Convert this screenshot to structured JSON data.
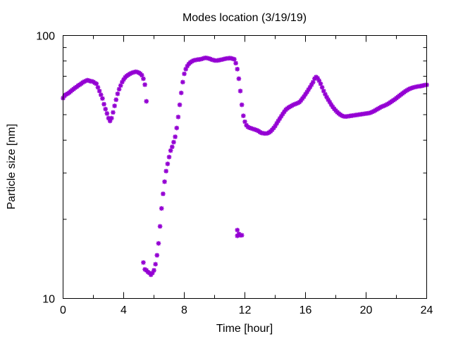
{
  "chart_data": {
    "type": "scatter",
    "title": "Modes location (3/19/19)",
    "xlabel": "Time [hour]",
    "ylabel": "Particle size [nm]",
    "xlim": [
      0,
      24
    ],
    "ylim": [
      10,
      100
    ],
    "y_scale": "log",
    "grid": false,
    "legend": "none",
    "marker": "star",
    "colors": {
      "series": "#9400d3",
      "axes": "#000000",
      "background": "#ffffff"
    },
    "x_ticks": [
      {
        "value": 0,
        "label": "0"
      },
      {
        "value": 4,
        "label": "4"
      },
      {
        "value": 8,
        "label": "8"
      },
      {
        "value": 12,
        "label": "12"
      },
      {
        "value": 16,
        "label": "16"
      },
      {
        "value": 20,
        "label": "20"
      },
      {
        "value": 24,
        "label": "24"
      }
    ],
    "y_ticks": [
      {
        "value": 10,
        "label": "10"
      },
      {
        "value": 100,
        "label": "100"
      }
    ],
    "y_minor_ticks": [
      20,
      30,
      40,
      50,
      60,
      70,
      80,
      90
    ],
    "x_minor_ticks": [
      2,
      6,
      10,
      14,
      18,
      22
    ],
    "series": [
      {
        "values": [
          [
            0.0,
            57.8
          ],
          [
            0.1,
            59.0
          ],
          [
            0.2,
            59.7
          ],
          [
            0.3,
            60.1
          ],
          [
            0.4,
            60.6
          ],
          [
            0.5,
            61.3
          ],
          [
            0.6,
            62.0
          ],
          [
            0.7,
            62.6
          ],
          [
            0.8,
            63.3
          ],
          [
            0.9,
            63.8
          ],
          [
            1.0,
            64.5
          ],
          [
            1.1,
            65.0
          ],
          [
            1.2,
            65.6
          ],
          [
            1.3,
            66.3
          ],
          [
            1.4,
            66.8
          ],
          [
            1.5,
            67.2
          ],
          [
            1.6,
            67.6
          ],
          [
            1.7,
            67.4
          ],
          [
            1.8,
            67.0
          ],
          [
            1.9,
            67.0
          ],
          [
            2.0,
            66.6
          ],
          [
            2.1,
            66.0
          ],
          [
            2.2,
            65.5
          ],
          [
            2.3,
            63.5
          ],
          [
            2.4,
            61.5
          ],
          [
            2.5,
            59.5
          ],
          [
            2.6,
            57.6
          ],
          [
            2.7,
            54.8
          ],
          [
            2.8,
            52.5
          ],
          [
            2.9,
            50.5
          ],
          [
            3.0,
            48.5
          ],
          [
            3.1,
            47.3
          ],
          [
            3.2,
            48.5
          ],
          [
            3.3,
            51.0
          ],
          [
            3.4,
            54.0
          ],
          [
            3.5,
            57.0
          ],
          [
            3.6,
            60.0
          ],
          [
            3.7,
            62.5
          ],
          [
            3.8,
            64.5
          ],
          [
            3.9,
            66.5
          ],
          [
            4.0,
            68.0
          ],
          [
            4.1,
            69.3
          ],
          [
            4.2,
            70.2
          ],
          [
            4.3,
            70.8
          ],
          [
            4.4,
            71.4
          ],
          [
            4.5,
            71.9
          ],
          [
            4.6,
            72.3
          ],
          [
            4.7,
            72.6
          ],
          [
            4.8,
            72.8
          ],
          [
            4.9,
            72.6
          ],
          [
            5.0,
            72.2
          ],
          [
            5.1,
            71.6
          ],
          [
            5.2,
            70.6
          ],
          [
            5.3,
            68.5
          ],
          [
            5.4,
            65.0
          ],
          [
            5.5,
            56.2
          ],
          [
            5.3,
            13.7
          ],
          [
            5.4,
            12.9
          ],
          [
            5.5,
            12.8
          ],
          [
            5.6,
            12.6
          ],
          [
            5.7,
            12.5
          ],
          [
            5.8,
            12.3
          ],
          [
            5.9,
            12.5
          ],
          [
            6.0,
            12.8
          ],
          [
            6.1,
            13.5
          ],
          [
            6.2,
            14.6
          ],
          [
            6.3,
            16.2
          ],
          [
            6.4,
            18.8
          ],
          [
            6.5,
            22.0
          ],
          [
            6.6,
            25.0
          ],
          [
            6.7,
            27.8
          ],
          [
            6.8,
            30.5
          ],
          [
            6.9,
            32.5
          ],
          [
            7.0,
            34.5
          ],
          [
            7.1,
            36.5
          ],
          [
            7.2,
            37.7
          ],
          [
            7.3,
            39.3
          ],
          [
            7.4,
            41.2
          ],
          [
            7.5,
            44.5
          ],
          [
            7.6,
            49.0
          ],
          [
            7.7,
            54.5
          ],
          [
            7.8,
            60.5
          ],
          [
            7.9,
            66.5
          ],
          [
            8.0,
            71.5
          ],
          [
            8.1,
            74.5
          ],
          [
            8.2,
            76.5
          ],
          [
            8.3,
            78.0
          ],
          [
            8.4,
            79.0
          ],
          [
            8.5,
            79.7
          ],
          [
            8.6,
            80.3
          ],
          [
            8.7,
            80.6
          ],
          [
            8.8,
            80.8
          ],
          [
            8.9,
            81.0
          ],
          [
            9.0,
            81.1
          ],
          [
            9.1,
            81.3
          ],
          [
            9.2,
            81.6
          ],
          [
            9.3,
            82.0
          ],
          [
            9.4,
            82.2
          ],
          [
            9.5,
            82.1
          ],
          [
            9.6,
            81.8
          ],
          [
            9.7,
            81.5
          ],
          [
            9.8,
            81.0
          ],
          [
            9.9,
            80.7
          ],
          [
            10.0,
            80.4
          ],
          [
            10.1,
            80.3
          ],
          [
            10.2,
            80.4
          ],
          [
            10.3,
            80.6
          ],
          [
            10.4,
            80.8
          ],
          [
            10.5,
            81.0
          ],
          [
            10.6,
            81.3
          ],
          [
            10.7,
            81.6
          ],
          [
            10.8,
            81.8
          ],
          [
            10.9,
            81.9
          ],
          [
            11.0,
            82.0
          ],
          [
            11.1,
            81.9
          ],
          [
            11.2,
            81.6
          ],
          [
            11.3,
            81.2
          ],
          [
            11.4,
            78.5
          ],
          [
            11.5,
            74.5
          ],
          [
            11.6,
            68.5
          ],
          [
            11.7,
            61.5
          ],
          [
            11.8,
            54.5
          ],
          [
            11.9,
            49.5
          ],
          [
            11.5,
            17.3
          ],
          [
            11.5,
            18.2
          ],
          [
            11.6,
            17.6
          ],
          [
            11.7,
            17.4
          ],
          [
            11.8,
            17.4
          ],
          [
            12.0,
            47.0
          ],
          [
            12.1,
            45.6
          ],
          [
            12.2,
            44.9
          ],
          [
            12.3,
            44.6
          ],
          [
            12.4,
            44.4
          ],
          [
            12.5,
            44.2
          ],
          [
            12.6,
            44.0
          ],
          [
            12.7,
            43.8
          ],
          [
            12.8,
            43.6
          ],
          [
            12.9,
            43.3
          ],
          [
            13.0,
            42.9
          ],
          [
            13.1,
            42.6
          ],
          [
            13.2,
            42.5
          ],
          [
            13.3,
            42.4
          ],
          [
            13.4,
            42.4
          ],
          [
            13.5,
            42.5
          ],
          [
            13.6,
            42.8
          ],
          [
            13.7,
            43.2
          ],
          [
            13.8,
            43.8
          ],
          [
            13.9,
            44.5
          ],
          [
            14.0,
            45.3
          ],
          [
            14.1,
            46.3
          ],
          [
            14.2,
            47.3
          ],
          [
            14.3,
            48.3
          ],
          [
            14.4,
            49.3
          ],
          [
            14.5,
            50.3
          ],
          [
            14.6,
            51.3
          ],
          [
            14.7,
            52.2
          ],
          [
            14.8,
            52.8
          ],
          [
            14.9,
            53.3
          ],
          [
            15.0,
            53.7
          ],
          [
            15.1,
            54.1
          ],
          [
            15.2,
            54.5
          ],
          [
            15.3,
            54.8
          ],
          [
            15.4,
            55.1
          ],
          [
            15.5,
            55.4
          ],
          [
            15.6,
            55.8
          ],
          [
            15.7,
            56.6
          ],
          [
            15.8,
            57.6
          ],
          [
            15.9,
            58.6
          ],
          [
            16.0,
            59.8
          ],
          [
            16.1,
            61.0
          ],
          [
            16.2,
            62.3
          ],
          [
            16.3,
            63.6
          ],
          [
            16.4,
            65.0
          ],
          [
            16.5,
            66.5
          ],
          [
            16.6,
            68.5
          ],
          [
            16.7,
            69.5
          ],
          [
            16.8,
            68.8
          ],
          [
            16.9,
            67.3
          ],
          [
            17.0,
            65.5
          ],
          [
            17.1,
            63.5
          ],
          [
            17.2,
            61.5
          ],
          [
            17.3,
            59.8
          ],
          [
            17.4,
            58.3
          ],
          [
            17.5,
            57.0
          ],
          [
            17.6,
            55.8
          ],
          [
            17.7,
            54.6
          ],
          [
            17.8,
            53.5
          ],
          [
            17.9,
            52.6
          ],
          [
            18.0,
            51.8
          ],
          [
            18.1,
            51.1
          ],
          [
            18.2,
            50.5
          ],
          [
            18.3,
            50.0
          ],
          [
            18.4,
            49.6
          ],
          [
            18.5,
            49.3
          ],
          [
            18.6,
            49.2
          ],
          [
            18.7,
            49.2
          ],
          [
            18.8,
            49.3
          ],
          [
            18.9,
            49.4
          ],
          [
            19.0,
            49.5
          ],
          [
            19.1,
            49.6
          ],
          [
            19.2,
            49.7
          ],
          [
            19.3,
            49.8
          ],
          [
            19.4,
            49.9
          ],
          [
            19.5,
            50.0
          ],
          [
            19.6,
            50.1
          ],
          [
            19.7,
            50.2
          ],
          [
            19.8,
            50.3
          ],
          [
            19.9,
            50.4
          ],
          [
            20.0,
            50.5
          ],
          [
            20.1,
            50.6
          ],
          [
            20.2,
            50.7
          ],
          [
            20.3,
            50.9
          ],
          [
            20.4,
            51.2
          ],
          [
            20.5,
            51.5
          ],
          [
            20.6,
            51.9
          ],
          [
            20.7,
            52.3
          ],
          [
            20.8,
            52.7
          ],
          [
            20.9,
            53.1
          ],
          [
            21.0,
            53.5
          ],
          [
            21.1,
            53.8
          ],
          [
            21.2,
            54.1
          ],
          [
            21.3,
            54.4
          ],
          [
            21.4,
            54.8
          ],
          [
            21.5,
            55.2
          ],
          [
            21.6,
            55.7
          ],
          [
            21.7,
            56.2
          ],
          [
            21.8,
            56.7
          ],
          [
            21.9,
            57.2
          ],
          [
            22.0,
            57.8
          ],
          [
            22.1,
            58.4
          ],
          [
            22.2,
            59.0
          ],
          [
            22.3,
            59.6
          ],
          [
            22.4,
            60.2
          ],
          [
            22.5,
            60.8
          ],
          [
            22.6,
            61.4
          ],
          [
            22.7,
            61.9
          ],
          [
            22.8,
            62.4
          ],
          [
            22.9,
            62.8
          ],
          [
            23.0,
            63.1
          ],
          [
            23.1,
            63.4
          ],
          [
            23.2,
            63.6
          ],
          [
            23.3,
            63.8
          ],
          [
            23.4,
            64.0
          ],
          [
            23.5,
            64.1
          ],
          [
            23.6,
            64.2
          ],
          [
            23.7,
            64.4
          ],
          [
            23.8,
            64.6
          ],
          [
            23.9,
            64.8
          ],
          [
            24.0,
            64.9
          ]
        ]
      }
    ]
  }
}
